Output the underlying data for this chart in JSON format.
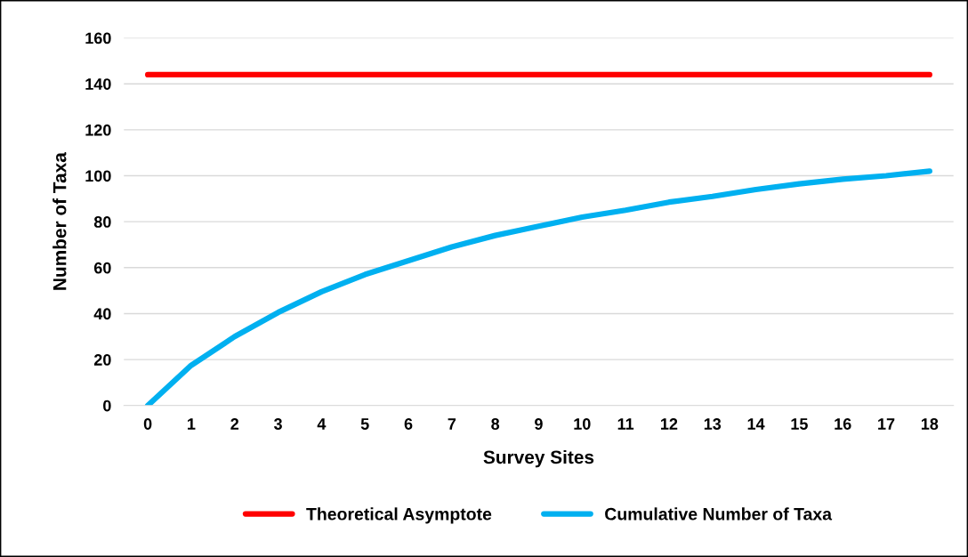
{
  "chart_data": {
    "type": "line",
    "xlabel": "Survey Sites",
    "ylabel": "Number of Taxa",
    "categories": [
      "0",
      "1",
      "2",
      "3",
      "4",
      "5",
      "6",
      "7",
      "8",
      "9",
      "10",
      "11",
      "12",
      "13",
      "14",
      "15",
      "16",
      "17",
      "18"
    ],
    "series": [
      {
        "name": "Theoretical Asymptote",
        "color": "#ff0000",
        "values": [
          144,
          144,
          144,
          144,
          144,
          144,
          144,
          144,
          144,
          144,
          144,
          144,
          144,
          144,
          144,
          144,
          144,
          144,
          144
        ]
      },
      {
        "name": "Cumulative Number of Taxa",
        "color": "#00b0f0",
        "values": [
          0,
          17.5,
          30,
          40.5,
          49.5,
          57,
          63,
          69,
          74,
          78,
          82,
          85,
          88.5,
          91,
          94,
          96.5,
          98.5,
          100,
          102
        ]
      }
    ],
    "ylim": [
      0,
      160
    ],
    "yticks": [
      0,
      20,
      40,
      60,
      80,
      100,
      120,
      140,
      160
    ],
    "grid": "y",
    "legend": "bottom",
    "marker": "none",
    "line_style": "solid"
  }
}
